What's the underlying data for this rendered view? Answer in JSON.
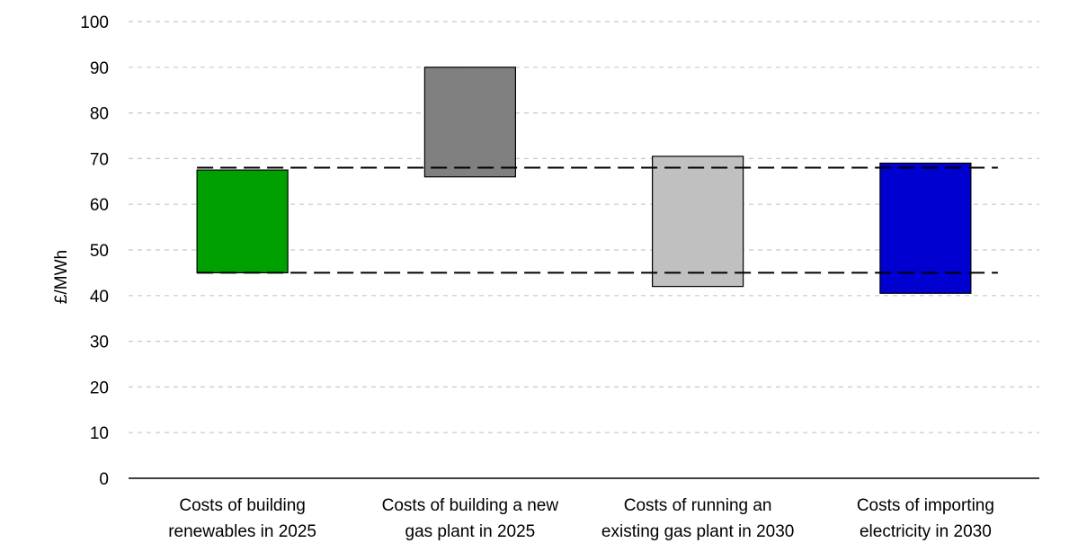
{
  "chart_data": {
    "type": "bar",
    "subtype": "floating-range",
    "title": "",
    "xlabel": "",
    "ylabel": "£/MWh",
    "ylim": [
      0,
      100
    ],
    "yticks": [
      0,
      10,
      20,
      30,
      40,
      50,
      60,
      70,
      80,
      90,
      100
    ],
    "grid": true,
    "categories": [
      [
        "Costs of building",
        "renewables in 2025"
      ],
      [
        "Costs of building a new",
        "gas plant in 2025"
      ],
      [
        "Costs of running an",
        "existing gas plant in 2030"
      ],
      [
        "Costs of importing",
        "electricity in 2030"
      ]
    ],
    "ranges": [
      {
        "low": 45,
        "high": 67.5,
        "color": "#00a000"
      },
      {
        "low": 66,
        "high": 90,
        "color": "#808080"
      },
      {
        "low": 42,
        "high": 70.5,
        "color": "#c0c0c0"
      },
      {
        "low": 40.5,
        "high": 69,
        "color": "#0000d0"
      }
    ],
    "reference_lines": [
      45,
      68
    ]
  }
}
